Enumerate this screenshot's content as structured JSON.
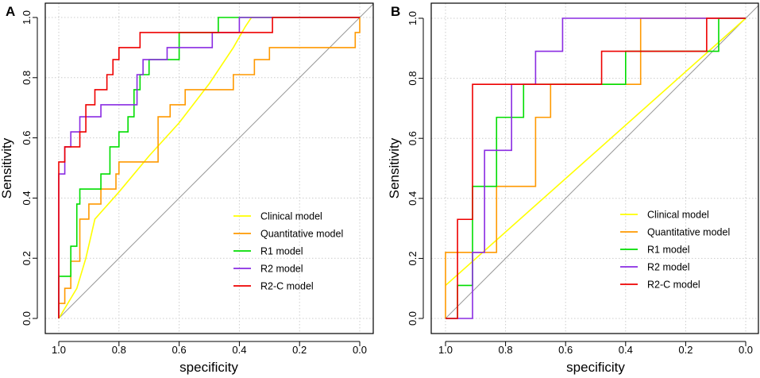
{
  "chart_data": [
    {
      "panel_label": "A",
      "type": "line",
      "xlabel": "specificity",
      "ylabel": "Sensitivity",
      "xlim": [
        1.0,
        0.0
      ],
      "ylim": [
        0.0,
        1.0
      ],
      "x_ticks": [
        "1.0",
        "0.8",
        "0.6",
        "0.4",
        "0.2",
        "0.0"
      ],
      "y_ticks": [
        "0.0",
        "0.2",
        "0.4",
        "0.6",
        "0.8",
        "1.0"
      ],
      "grid": true,
      "legend_position": "bottom-right",
      "series": [
        {
          "name": "Clinical model",
          "color": "#ffff00",
          "x": [
            1.0,
            0.97,
            0.94,
            0.91,
            0.88,
            0.8,
            0.7,
            0.6,
            0.5,
            0.42,
            0.38,
            0.36,
            0.0
          ],
          "y": [
            0.0,
            0.05,
            0.1,
            0.2,
            0.33,
            0.42,
            0.54,
            0.65,
            0.78,
            0.9,
            0.97,
            1.0,
            1.0
          ]
        },
        {
          "name": "Quantitative model",
          "color": "#ff9900",
          "x": [
            1.0,
            1.0,
            0.98,
            0.98,
            0.96,
            0.96,
            0.93,
            0.93,
            0.9,
            0.9,
            0.86,
            0.86,
            0.81,
            0.81,
            0.8,
            0.8,
            0.67,
            0.67,
            0.63,
            0.63,
            0.58,
            0.58,
            0.54,
            0.54,
            0.5,
            0.5,
            0.42,
            0.42,
            0.35,
            0.35,
            0.3,
            0.3,
            0.015,
            0.015,
            0.0,
            0.0
          ],
          "y": [
            0.0,
            0.05,
            0.05,
            0.1,
            0.1,
            0.19,
            0.19,
            0.33,
            0.33,
            0.38,
            0.38,
            0.43,
            0.43,
            0.48,
            0.48,
            0.52,
            0.52,
            0.67,
            0.67,
            0.71,
            0.71,
            0.76,
            0.76,
            0.76,
            0.76,
            0.76,
            0.76,
            0.81,
            0.81,
            0.86,
            0.86,
            0.9,
            0.9,
            0.95,
            0.95,
            1.0
          ]
        },
        {
          "name": "R1 model",
          "color": "#00dd00",
          "x": [
            1.0,
            1.0,
            0.96,
            0.96,
            0.94,
            0.94,
            0.93,
            0.93,
            0.88,
            0.88,
            0.86,
            0.86,
            0.83,
            0.83,
            0.8,
            0.8,
            0.77,
            0.77,
            0.75,
            0.75,
            0.73,
            0.73,
            0.7,
            0.7,
            0.6,
            0.6,
            0.47,
            0.47,
            0.4,
            0.4,
            0.0
          ],
          "y": [
            0.0,
            0.14,
            0.14,
            0.24,
            0.24,
            0.38,
            0.38,
            0.43,
            0.43,
            0.43,
            0.43,
            0.48,
            0.48,
            0.57,
            0.57,
            0.62,
            0.62,
            0.67,
            0.67,
            0.76,
            0.76,
            0.81,
            0.81,
            0.86,
            0.86,
            0.95,
            0.95,
            1.0,
            1.0,
            1.0,
            1.0
          ]
        },
        {
          "name": "R2 model",
          "color": "#8a2be2",
          "x": [
            1.0,
            1.0,
            0.98,
            0.98,
            0.96,
            0.96,
            0.93,
            0.93,
            0.9,
            0.9,
            0.86,
            0.86,
            0.82,
            0.82,
            0.74,
            0.74,
            0.72,
            0.72,
            0.68,
            0.68,
            0.64,
            0.64,
            0.58,
            0.58,
            0.49,
            0.49,
            0.4,
            0.4,
            0.0
          ],
          "y": [
            0.0,
            0.48,
            0.48,
            0.57,
            0.57,
            0.62,
            0.62,
            0.67,
            0.67,
            0.67,
            0.67,
            0.71,
            0.71,
            0.71,
            0.71,
            0.81,
            0.81,
            0.86,
            0.86,
            0.86,
            0.86,
            0.9,
            0.9,
            0.9,
            0.9,
            0.95,
            0.95,
            1.0,
            1.0
          ]
        },
        {
          "name": "R2-C model",
          "color": "#ee0000",
          "x": [
            1.0,
            1.0,
            0.98,
            0.98,
            0.96,
            0.96,
            0.93,
            0.93,
            0.91,
            0.91,
            0.88,
            0.88,
            0.86,
            0.86,
            0.84,
            0.84,
            0.82,
            0.82,
            0.8,
            0.8,
            0.76,
            0.76,
            0.73,
            0.73,
            0.29,
            0.29,
            0.0
          ],
          "y": [
            0.0,
            0.52,
            0.52,
            0.57,
            0.57,
            0.57,
            0.57,
            0.62,
            0.62,
            0.71,
            0.71,
            0.76,
            0.76,
            0.76,
            0.76,
            0.81,
            0.81,
            0.86,
            0.86,
            0.9,
            0.9,
            0.9,
            0.9,
            0.95,
            0.95,
            1.0,
            1.0
          ]
        }
      ]
    },
    {
      "panel_label": "B",
      "type": "line",
      "xlabel": "specificity",
      "ylabel": "Sensitivity",
      "xlim": [
        1.0,
        0.0
      ],
      "ylim": [
        0.0,
        1.0
      ],
      "x_ticks": [
        "1.0",
        "0.8",
        "0.6",
        "0.4",
        "0.2",
        "0.0"
      ],
      "y_ticks": [
        "0.0",
        "0.2",
        "0.4",
        "0.6",
        "0.8",
        "1.0"
      ],
      "grid": true,
      "legend_position": "bottom-right",
      "series": [
        {
          "name": "Clinical model",
          "color": "#ffff00",
          "x": [
            1.0,
            0.0
          ],
          "y": [
            0.11,
            1.0
          ]
        },
        {
          "name": "Quantitative model",
          "color": "#ff9900",
          "x": [
            1.0,
            1.0,
            0.83,
            0.83,
            0.7,
            0.7,
            0.65,
            0.65,
            0.35,
            0.35,
            0.0
          ],
          "y": [
            0.0,
            0.22,
            0.22,
            0.44,
            0.44,
            0.67,
            0.67,
            0.78,
            0.78,
            1.0,
            1.0
          ]
        },
        {
          "name": "R1 model",
          "color": "#00dd00",
          "x": [
            1.0,
            0.96,
            0.96,
            0.91,
            0.91,
            0.83,
            0.83,
            0.74,
            0.74,
            0.4,
            0.4,
            0.09,
            0.09,
            0.0
          ],
          "y": [
            0.0,
            0.0,
            0.11,
            0.11,
            0.44,
            0.44,
            0.67,
            0.67,
            0.78,
            0.78,
            0.89,
            0.89,
            1.0,
            1.0
          ]
        },
        {
          "name": "R2 model",
          "color": "#8a2be2",
          "x": [
            1.0,
            0.91,
            0.91,
            0.87,
            0.87,
            0.78,
            0.78,
            0.7,
            0.7,
            0.61,
            0.61,
            0.0
          ],
          "y": [
            0.0,
            0.0,
            0.22,
            0.22,
            0.56,
            0.56,
            0.78,
            0.78,
            0.89,
            0.89,
            1.0,
            1.0
          ]
        },
        {
          "name": "R2-C model",
          "color": "#ee0000",
          "x": [
            1.0,
            1.0,
            0.96,
            0.96,
            0.91,
            0.91,
            0.48,
            0.48,
            0.13,
            0.13,
            0.0
          ],
          "y": [
            0.0,
            0.0,
            0.0,
            0.33,
            0.33,
            0.78,
            0.78,
            0.89,
            0.89,
            1.0,
            1.0
          ]
        }
      ]
    }
  ]
}
